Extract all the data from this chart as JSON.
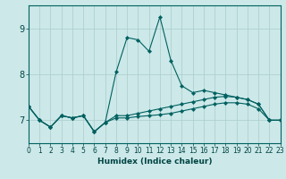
{
  "xlabel": "Humidex (Indice chaleur)",
  "background_color": "#cce8e8",
  "line_color": "#006060",
  "x_values": [
    0,
    1,
    2,
    3,
    4,
    5,
    6,
    7,
    8,
    9,
    10,
    11,
    12,
    13,
    14,
    15,
    16,
    17,
    18,
    19,
    20,
    21,
    22,
    23
  ],
  "series1": [
    7.3,
    7.0,
    6.85,
    7.1,
    7.05,
    7.1,
    6.75,
    6.95,
    8.05,
    8.8,
    8.75,
    8.5,
    9.25,
    8.3,
    7.75,
    7.6,
    7.65,
    7.6,
    7.55,
    7.5,
    7.45,
    7.35,
    7.0,
    7.0
  ],
  "series2": [
    7.3,
    7.0,
    6.85,
    7.1,
    7.05,
    7.1,
    6.75,
    6.95,
    7.1,
    7.1,
    7.15,
    7.2,
    7.25,
    7.3,
    7.35,
    7.4,
    7.45,
    7.5,
    7.52,
    7.5,
    7.45,
    7.35,
    7.0,
    7.0
  ],
  "series3": [
    7.3,
    7.0,
    6.85,
    7.1,
    7.05,
    7.1,
    6.75,
    6.95,
    7.05,
    7.05,
    7.08,
    7.1,
    7.12,
    7.15,
    7.2,
    7.25,
    7.3,
    7.35,
    7.38,
    7.38,
    7.35,
    7.25,
    7.0,
    7.0
  ],
  "ylim": [
    6.5,
    9.5
  ],
  "xlim": [
    0,
    23
  ],
  "yticks": [
    7,
    8,
    9
  ],
  "xticks": [
    0,
    1,
    2,
    3,
    4,
    5,
    6,
    7,
    8,
    9,
    10,
    11,
    12,
    13,
    14,
    15,
    16,
    17,
    18,
    19,
    20,
    21,
    22,
    23
  ],
  "grid_color": "#aacccc",
  "spine_color": "#006060",
  "tick_color": "#004444",
  "xlabel_fontsize": 6.5,
  "tick_fontsize": 5.5,
  "ytick_fontsize": 7
}
